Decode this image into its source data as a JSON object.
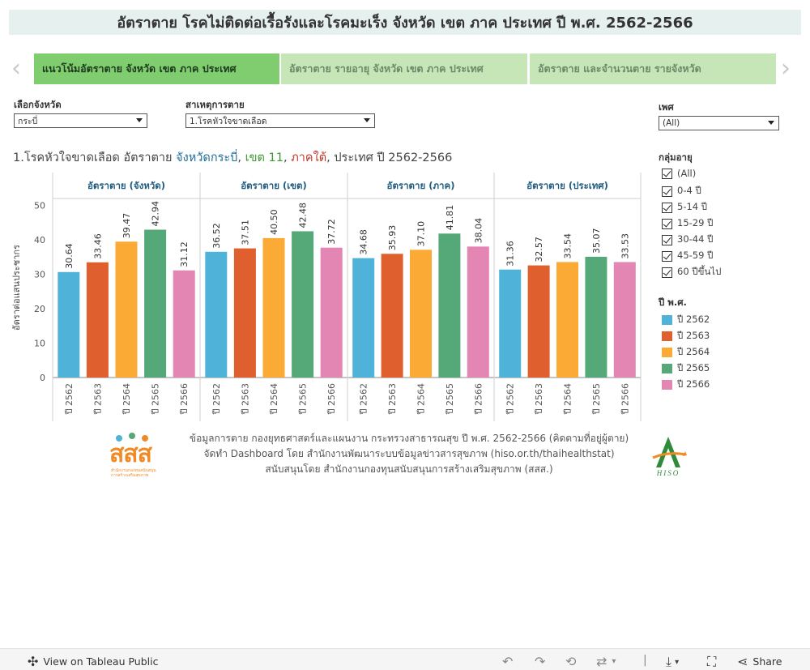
{
  "title": "อัตราตาย โรคไม่ติดต่อเรื้อรังและโรคมะเร็ง จังหวัด เขต ภาค ประเทศ ปี พ.ศ. 2562-2566",
  "tabs": [
    {
      "label": "แนวโน้มอัตราตาย จังหวัด เขต ภาค ประเทศ"
    },
    {
      "label": "อัตราตาย รายอายุ จังหวัด เขต ภาค ประเทศ"
    },
    {
      "label": "อัตราตาย และจำนวนตาย รายจังหวัด"
    }
  ],
  "filters": {
    "province": {
      "label": "เลือกจังหวัด",
      "value": "กระบี่"
    },
    "cause": {
      "label": "สาเหตุการตาย",
      "value": "1.โรคหัวใจขาดเลือด"
    },
    "sex": {
      "label": "เพศ",
      "value": "(All)"
    }
  },
  "chart_heading": {
    "prefix": "1.โรคหัวใจขาดเลือด อัตราตาย ",
    "province": "จังหวัดกระบี่",
    "sep1": ", ",
    "zone": "เขต 11",
    "sep2": ", ",
    "region": "ภาคใต้",
    "suffix": ", ประเทศ ปี 2562-2566"
  },
  "age_groups": {
    "label": "กลุ่มอายุ",
    "items": [
      "(All)",
      "0-4 ปี",
      "5-14 ปี",
      "15-29 ปี",
      "30-44 ปี",
      "45-59 ปี",
      "60 ปีขึ้นไป"
    ]
  },
  "year_legend": {
    "label": "ปี พ.ศ.",
    "items": [
      {
        "label": "ปี 2562",
        "color": "#4fb3d9"
      },
      {
        "label": "ปี 2563",
        "color": "#e05f2f"
      },
      {
        "label": "ปี 2564",
        "color": "#fbab35"
      },
      {
        "label": "ปี 2565",
        "color": "#55a877"
      },
      {
        "label": "ปี 2566",
        "color": "#e386b4"
      }
    ]
  },
  "chart_data": {
    "type": "bar",
    "ylabel": "อัตราต่อแสนประชากร",
    "ylim": [
      0,
      52
    ],
    "yticks": [
      0,
      10,
      20,
      30,
      40,
      50
    ],
    "categories": [
      "ปี 2562",
      "ปี 2563",
      "ปี 2564",
      "ปี 2565",
      "ปี 2566"
    ],
    "colors": [
      "#4fb3d9",
      "#e05f2f",
      "#fbab35",
      "#55a877",
      "#e386b4"
    ],
    "panels": [
      {
        "name": "อัตราตาย (จังหวัด)",
        "values": [
          30.64,
          33.46,
          39.47,
          42.94,
          31.12
        ]
      },
      {
        "name": "อัตราตาย (เขต)",
        "values": [
          36.52,
          37.51,
          40.5,
          42.48,
          37.72
        ]
      },
      {
        "name": "อัตราตาย (ภาค)",
        "values": [
          34.68,
          35.93,
          37.1,
          41.81,
          38.04
        ]
      },
      {
        "name": "อัตราตาย (ประเทศ)",
        "values": [
          31.36,
          32.57,
          33.54,
          35.07,
          33.53
        ]
      }
    ]
  },
  "footer": {
    "line1": "ข้อมูลการตาย กองยุทธศาสตร์และแผนงาน กระทรวงสาธารณสุข ปี พ.ศ. 2562-2566 (คิดตามที่อยู่ผู้ตาย)",
    "line2": "จัดทำ Dashboard โดย สำนักงานพัฒนาระบบข้อมูลข่าวสารสุขภาพ (hiso.or.th/thaihealthstat)",
    "line3": "สนับสนุนโดย สำนักงานกองทุนสนับสนุนการสร้างเสริมสุขภาพ (สสส.)",
    "logo_left_text": "สสส",
    "logo_left_sub": "สำนักงานกองทุนสนับสนุนการสร้างเสริมสุขภาพ",
    "logo_right_text": "HISO"
  },
  "bottom_bar": {
    "view_label": "View on Tableau Public",
    "share_label": "Share"
  }
}
